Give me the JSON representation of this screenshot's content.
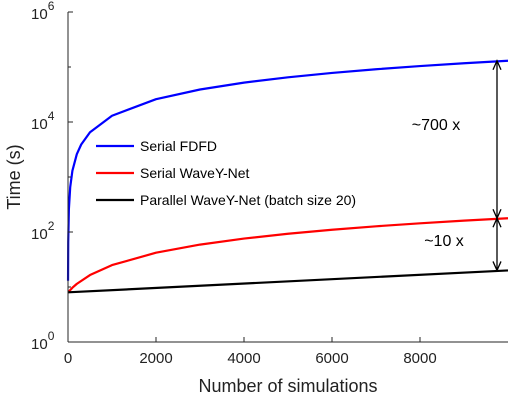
{
  "chart_data": {
    "type": "line",
    "xlabel": "Number of simulations",
    "ylabel": "Time (s)",
    "xlim": [
      0,
      10000
    ],
    "ylim": [
      1,
      1000000
    ],
    "yscale": "log",
    "grid": false,
    "legend_position": "upper-left inside",
    "x_ticks": [
      0,
      2000,
      4000,
      6000,
      8000
    ],
    "x_tick_labels": [
      "0",
      "2000",
      "4000",
      "6000",
      "8000"
    ],
    "y_ticks": [
      1,
      100,
      10000,
      1000000
    ],
    "y_tick_labels": [
      {
        "base": "10",
        "exp": "0"
      },
      {
        "base": "10",
        "exp": "2"
      },
      {
        "base": "10",
        "exp": "4"
      },
      {
        "base": "10",
        "exp": "6"
      }
    ],
    "series": [
      {
        "name": "Serial FDFD",
        "color": "#0000ff",
        "x": [
          1,
          5,
          20,
          50,
          100,
          200,
          300,
          500,
          1000,
          2000,
          3000,
          4000,
          5000,
          6000,
          7000,
          8000,
          9000,
          10000
        ],
        "y": [
          13,
          65,
          260,
          650,
          1300,
          2600,
          3900,
          6500,
          13000,
          26000,
          39000,
          52000,
          65000,
          78000,
          91000,
          104000,
          117000,
          130000
        ]
      },
      {
        "name": "Serial WaveY-Net",
        "color": "#ff0000",
        "x": [
          0,
          10,
          100,
          200,
          500,
          1000,
          2000,
          3000,
          4000,
          5000,
          6000,
          7000,
          8000,
          9000,
          10000
        ],
        "y": [
          8,
          8.1,
          9.7,
          11.4,
          16.5,
          25,
          42,
          59,
          76,
          93,
          110,
          127,
          144,
          161,
          178
        ]
      },
      {
        "name": "Parallel WaveY-Net (batch size 20)",
        "color": "#000000",
        "x": [
          0,
          10000
        ],
        "y": [
          8,
          20
        ]
      }
    ],
    "annotations": [
      {
        "text": "~700 x",
        "x": 9750,
        "y_from": 178,
        "y_to": 130000
      },
      {
        "text": "~10 x",
        "x": 9750,
        "y_from": 20,
        "y_to": 178
      }
    ]
  }
}
